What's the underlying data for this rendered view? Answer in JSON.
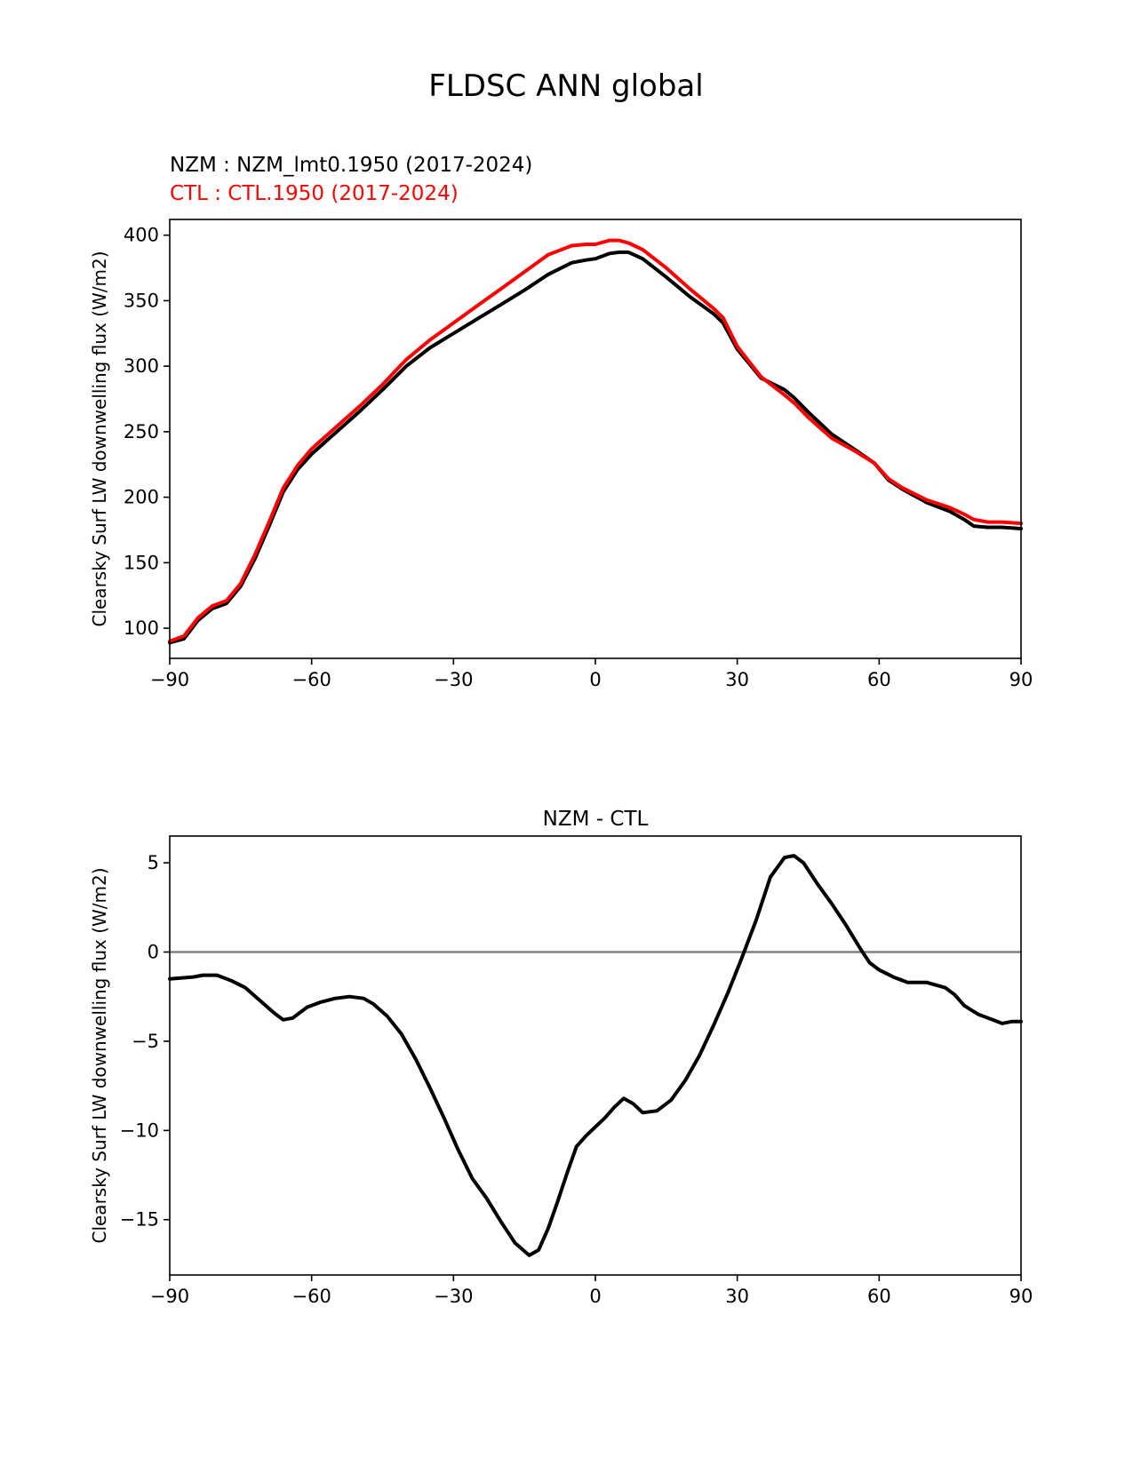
{
  "figure": {
    "title": "FLDSC ANN global"
  },
  "colors": {
    "nzm": "#000000",
    "ctl": "#ff0000",
    "zero_line": "#808080",
    "text": "#000000"
  },
  "chart_data": [
    {
      "type": "line",
      "legend": [
        {
          "label": "NZM  : NZM_lmt0.1950 (2017-2024)",
          "color": "#000000"
        },
        {
          "label": "CTL : CTL.1950 (2017-2024)",
          "color": "#ff0000"
        }
      ],
      "xlabel": "",
      "ylabel": "Clearsky Surf LW downwelling flux (W/m2)",
      "xlim": [
        -90,
        90
      ],
      "ylim": [
        77,
        412
      ],
      "xticks": [
        -90,
        -60,
        -30,
        0,
        30,
        60,
        90
      ],
      "xtick_labels": [
        "−90",
        "−60",
        "−30",
        "0",
        "30",
        "60",
        "90"
      ],
      "yticks": [
        100,
        150,
        200,
        250,
        300,
        350,
        400
      ],
      "ytick_labels": [
        "100",
        "150",
        "200",
        "250",
        "300",
        "350",
        "400"
      ],
      "x": [
        -90,
        -87,
        -84,
        -81,
        -78,
        -75,
        -72,
        -69,
        -66,
        -63,
        -60,
        -55,
        -50,
        -45,
        -40,
        -35,
        -30,
        -25,
        -20,
        -15,
        -10,
        -5,
        -2,
        0,
        3,
        5,
        7,
        10,
        15,
        20,
        25,
        27,
        30,
        35,
        40,
        42,
        45,
        50,
        55,
        59,
        62,
        65,
        70,
        75,
        78,
        80,
        83,
        86,
        90
      ],
      "series": [
        {
          "name": "NZM",
          "color": "#000000",
          "values": [
            89,
            92,
            106,
            115,
            119,
            132,
            153,
            178,
            204,
            221,
            233,
            249,
            265,
            282,
            300,
            314,
            325,
            336,
            347,
            358,
            370,
            379,
            381,
            382,
            386,
            387,
            387,
            382,
            368,
            353,
            340,
            333,
            313,
            291,
            282,
            276,
            265,
            248,
            236,
            226,
            213,
            206,
            196,
            189,
            183,
            178,
            177,
            177,
            176
          ]
        },
        {
          "name": "CTL",
          "color": "#ff0000",
          "values": [
            90,
            94,
            108,
            117,
            121,
            134,
            156,
            181,
            207,
            224,
            237,
            253,
            269,
            286,
            305,
            320,
            333,
            346,
            359,
            372,
            385,
            392,
            393,
            393,
            396,
            396,
            394,
            389,
            375,
            359,
            344,
            337,
            315,
            292,
            278,
            272,
            261,
            245,
            235,
            226,
            214,
            207,
            198,
            192,
            187,
            183,
            181,
            181,
            180
          ]
        }
      ]
    },
    {
      "type": "line",
      "title": "NZM - CTL",
      "xlabel": "",
      "ylabel": "Clearsky Surf LW downwelling flux (W/m2)",
      "xlim": [
        -90,
        90
      ],
      "ylim": [
        -18.1,
        6.5
      ],
      "xticks": [
        -90,
        -60,
        -30,
        0,
        30,
        60,
        90
      ],
      "xtick_labels": [
        "−90",
        "−60",
        "−30",
        "0",
        "30",
        "60",
        "90"
      ],
      "yticks": [
        5,
        0,
        -5,
        -10,
        -15
      ],
      "ytick_labels": [
        "5",
        "0",
        "−5",
        "−10",
        "−15"
      ],
      "zero_line": true,
      "x": [
        -90,
        -85,
        -83,
        -80,
        -77,
        -74,
        -71,
        -68,
        -66,
        -64,
        -61,
        -58,
        -55,
        -52,
        -49,
        -47,
        -44,
        -41,
        -38,
        -35,
        -32,
        -29,
        -26,
        -23,
        -20,
        -17,
        -14,
        -12,
        -10,
        -8,
        -6,
        -4,
        -2,
        0,
        2,
        4,
        6,
        8,
        10,
        13,
        16,
        19,
        22,
        25,
        28,
        31,
        34,
        37,
        40,
        42,
        44,
        47,
        50,
        53,
        56,
        58,
        60,
        63,
        66,
        68,
        70,
        74,
        76,
        78,
        81,
        84,
        86,
        88,
        90
      ],
      "series": [
        {
          "name": "NZM - CTL",
          "color": "#000000",
          "values": [
            -1.5,
            -1.4,
            -1.3,
            -1.3,
            -1.6,
            -2.0,
            -2.7,
            -3.4,
            -3.8,
            -3.7,
            -3.1,
            -2.8,
            -2.6,
            -2.5,
            -2.6,
            -2.9,
            -3.6,
            -4.6,
            -6.0,
            -7.6,
            -9.3,
            -11.1,
            -12.7,
            -13.8,
            -15.1,
            -16.3,
            -17.0,
            -16.7,
            -15.5,
            -14.0,
            -12.4,
            -10.9,
            -10.3,
            -9.8,
            -9.3,
            -8.7,
            -8.2,
            -8.5,
            -9.0,
            -8.9,
            -8.3,
            -7.2,
            -5.8,
            -4.1,
            -2.3,
            -0.3,
            1.8,
            4.2,
            5.3,
            5.4,
            5.0,
            3.8,
            2.7,
            1.5,
            0.2,
            -0.6,
            -1.0,
            -1.4,
            -1.7,
            -1.7,
            -1.7,
            -2.0,
            -2.4,
            -3.0,
            -3.5,
            -3.8,
            -4.0,
            -3.9,
            -3.9
          ]
        }
      ]
    }
  ]
}
